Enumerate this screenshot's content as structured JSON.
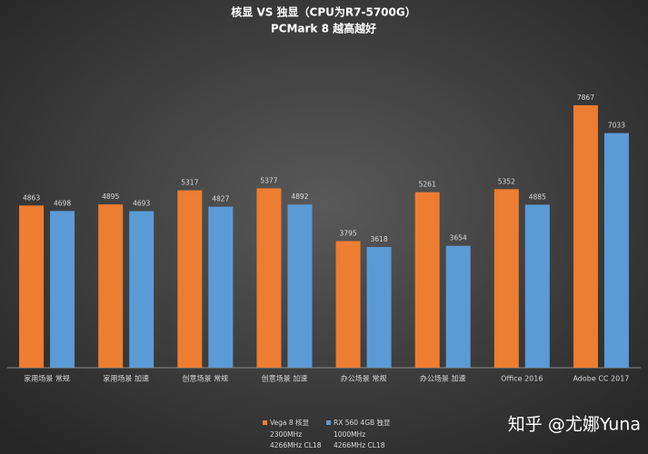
{
  "chart_data": {
    "type": "bar",
    "title": "核显 VS 独显（CPU为R7-5700G）",
    "subtitle": "PCMark 8 越高越好",
    "categories": [
      "家用场景 常规",
      "家用场景 加速",
      "创意场景 常规",
      "创意场景 加速",
      "办公场景 常规",
      "办公场景 加速",
      "Office 2016",
      "Adobe CC 2017"
    ],
    "series": [
      {
        "name": "Vega 8 核显",
        "details": [
          "2300MHz",
          "4266MHz CL18"
        ],
        "color": "#ed7d31",
        "values": [
          4863,
          4895,
          5317,
          5377,
          3795,
          5261,
          5352,
          7867
        ]
      },
      {
        "name": "RX 560 4GB 独显",
        "details": [
          "1000MHz",
          "4266MHz CL18"
        ],
        "color": "#5b9bd5",
        "values": [
          4698,
          4693,
          4827,
          4892,
          3618,
          3654,
          4885,
          7033
        ]
      }
    ],
    "ylim": [
      0,
      8000
    ],
    "legend": "bottom",
    "watermark": "知乎 @尤娜Yuna"
  }
}
